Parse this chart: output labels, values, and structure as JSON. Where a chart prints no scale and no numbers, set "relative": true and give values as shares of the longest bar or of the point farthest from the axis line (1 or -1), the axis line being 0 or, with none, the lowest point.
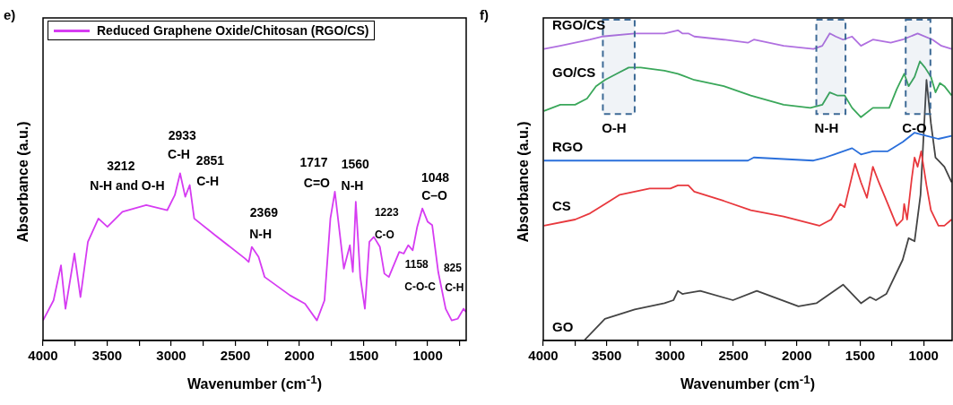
{
  "chart_data": [
    {
      "type": "line",
      "title": "e)",
      "xlabel": "Wavenumber (cm$^{-1}$)",
      "ylabel": "Absorbance (a.u.)",
      "relative": true,
      "legend": "top left",
      "grid": false,
      "xlim": [
        4000,
        700
      ],
      "xticks": [
        4000,
        {
          "value": 3750,
          "label": null
        },
        3500,
        {
          "value": 3250,
          "label": null
        },
        3000,
        {
          "value": 2750,
          "label": null
        },
        2500,
        {
          "value": 2250,
          "label": null
        },
        2000,
        {
          "value": 1750,
          "label": null
        },
        1500,
        {
          "value": 1250,
          "label": null
        },
        1000,
        {
          "value": 750,
          "label": null
        }
      ],
      "series": [
        {
          "name": "Reduced Graphene Oxide/Chitosan (RGO/CS)",
          "color": "#d63cf2",
          "x": [
            4000,
            3918,
            3860,
            3825,
            3755,
            3708,
            3650,
            3568,
            3498,
            3381,
            3195,
            3031,
            2972,
            2931,
            2891,
            2856,
            2821,
            2658,
            2424,
            2396,
            2372,
            2319,
            2272,
            2074,
            1957,
            1864,
            1805,
            1759,
            1724,
            1689,
            1654,
            1607,
            1584,
            1561,
            1526,
            1490,
            1455,
            1420,
            1373,
            1338,
            1303,
            1222,
            1187,
            1152,
            1117,
            1082,
            1042,
            1000,
            965,
            918,
            860,
            813,
            766,
            720,
            702
          ],
          "values": [
            0.12,
            0.24,
            0.45,
            0.19,
            0.52,
            0.26,
            0.59,
            0.73,
            0.68,
            0.77,
            0.81,
            0.78,
            0.87,
            1.0,
            0.86,
            0.93,
            0.73,
            0.63,
            0.49,
            0.47,
            0.56,
            0.5,
            0.38,
            0.27,
            0.22,
            0.12,
            0.24,
            0.73,
            0.89,
            0.66,
            0.43,
            0.57,
            0.41,
            0.83,
            0.38,
            0.19,
            0.59,
            0.62,
            0.56,
            0.4,
            0.38,
            0.53,
            0.52,
            0.57,
            0.54,
            0.68,
            0.79,
            0.71,
            0.69,
            0.41,
            0.19,
            0.12,
            0.13,
            0.19,
            0.17
          ]
        }
      ],
      "annotations": [
        "3212",
        "N-H and O-H",
        "2933",
        "C-H",
        "2851",
        "C-H",
        "2369",
        "N-H",
        "1717",
        "C=O",
        "1560",
        "N-H",
        "1223",
        "C-O",
        "1048",
        "C–O",
        "1158",
        "C-O-C",
        "825",
        "C-H"
      ]
    },
    {
      "type": "line",
      "title": "f)",
      "xlabel": "Wavenumber (cm$^{-1}$)",
      "ylabel": "Absorbance (a.u.)",
      "relative": true,
      "legend": false,
      "grid": false,
      "xlim": [
        4000,
        775
      ],
      "xticks": [
        4000,
        {
          "value": 3750,
          "label": null
        },
        3500,
        {
          "value": 3250,
          "label": null
        },
        3000,
        {
          "value": 2750,
          "label": null
        },
        2500,
        {
          "value": 2250,
          "label": null
        },
        2000,
        {
          "value": 1750,
          "label": null
        },
        1500,
        {
          "value": 1250,
          "label": null
        },
        1000
      ],
      "bands": [
        {
          "axis": "x",
          "from": 3530,
          "to": 3279,
          "label": "O-H",
          "color": "#3d6a96"
        },
        {
          "axis": "x",
          "from": 1846,
          "to": 1616,
          "label": "N-H",
          "color": "#3d6a96"
        },
        {
          "axis": "x",
          "from": 1141,
          "to": 946,
          "label": "C-O",
          "color": "#3d6a96"
        }
      ],
      "series": [
        {
          "name": "RGO/CS",
          "color": "#b070e0",
          "x": [
            3995,
            3866,
            3749,
            3631,
            3537,
            3279,
            3044,
            2938,
            2903,
            2856,
            2809,
            2576,
            2386,
            2339,
            2104,
            1869,
            1799,
            1740,
            1693,
            1635,
            1564,
            1494,
            1400,
            1259,
            1165,
            1047,
            930,
            859,
            779
          ],
          "values": [
            0.94,
            0.95,
            0.96,
            0.97,
            0.98,
            0.99,
            0.99,
            1.0,
            0.99,
            0.99,
            0.98,
            0.97,
            0.96,
            0.97,
            0.95,
            0.94,
            0.95,
            0.99,
            0.98,
            0.97,
            0.98,
            0.95,
            0.97,
            0.96,
            0.97,
            0.99,
            0.97,
            0.95,
            0.94
          ]
        },
        {
          "name": "GO/CS",
          "color": "#3aa75a",
          "x": [
            3995,
            3866,
            3749,
            3655,
            3584,
            3514,
            3420,
            3326,
            3232,
            3044,
            2938,
            2809,
            2576,
            2363,
            2104,
            1893,
            1799,
            1740,
            1682,
            1623,
            1564,
            1494,
            1400,
            1271,
            1212,
            1153,
            1118,
            1071,
            1029,
            989,
            942,
            906,
            871,
            836,
            779
          ],
          "values": [
            0.74,
            0.76,
            0.76,
            0.78,
            0.82,
            0.84,
            0.86,
            0.88,
            0.88,
            0.87,
            0.86,
            0.84,
            0.82,
            0.79,
            0.76,
            0.75,
            0.76,
            0.8,
            0.79,
            0.79,
            0.75,
            0.72,
            0.75,
            0.75,
            0.81,
            0.86,
            0.82,
            0.85,
            0.9,
            0.88,
            0.85,
            0.8,
            0.83,
            0.82,
            0.79
          ]
        },
        {
          "name": "RGO",
          "color": "#2a6fdb",
          "x": [
            3995,
            3749,
            3514,
            3044,
            2386,
            2339,
            1869,
            1776,
            1705,
            1564,
            1494,
            1400,
            1282,
            1165,
            1071,
            977,
            883,
            779
          ],
          "values": [
            0.58,
            0.58,
            0.58,
            0.58,
            0.58,
            0.59,
            0.58,
            0.59,
            0.6,
            0.62,
            0.6,
            0.61,
            0.61,
            0.64,
            0.67,
            0.66,
            0.65,
            0.66
          ]
        },
        {
          "name": "CS",
          "color": "#e8383d",
          "x": [
            3995,
            3749,
            3631,
            3514,
            3396,
            3161,
            2997,
            2938,
            2856,
            2809,
            2576,
            2363,
            2104,
            1822,
            1729,
            1658,
            1623,
            1588,
            1541,
            1494,
            1447,
            1400,
            1353,
            1282,
            1212,
            1165,
            1153,
            1130,
            1094,
            1071,
            1047,
            1019,
            977,
            942,
            883,
            836,
            779
          ],
          "values": [
            0.37,
            0.39,
            0.41,
            0.44,
            0.47,
            0.49,
            0.49,
            0.5,
            0.5,
            0.48,
            0.45,
            0.42,
            0.4,
            0.37,
            0.39,
            0.44,
            0.43,
            0.49,
            0.57,
            0.51,
            0.46,
            0.56,
            0.51,
            0.44,
            0.37,
            0.39,
            0.44,
            0.39,
            0.52,
            0.59,
            0.56,
            0.61,
            0.5,
            0.42,
            0.37,
            0.37,
            0.39
          ]
        },
        {
          "name": "GO",
          "color": "#444444",
          "x": [
            3995,
            3678,
            3514,
            3279,
            3044,
            2973,
            2938,
            2903,
            2762,
            2504,
            2316,
            1987,
            1846,
            1635,
            1494,
            1423,
            1376,
            1294,
            1165,
            1118,
            1071,
            1024,
            977,
            942,
            906,
            883,
            836,
            779
          ],
          "values": [
            0,
            0,
            0.07,
            0.1,
            0.12,
            0.13,
            0.16,
            0.15,
            0.16,
            0.13,
            0.16,
            0.11,
            0.12,
            0.18,
            0.12,
            0.14,
            0.13,
            0.15,
            0.26,
            0.33,
            0.32,
            0.47,
            0.84,
            0.7,
            0.59,
            0.58,
            0.56,
            0.51
          ]
        }
      ]
    }
  ]
}
